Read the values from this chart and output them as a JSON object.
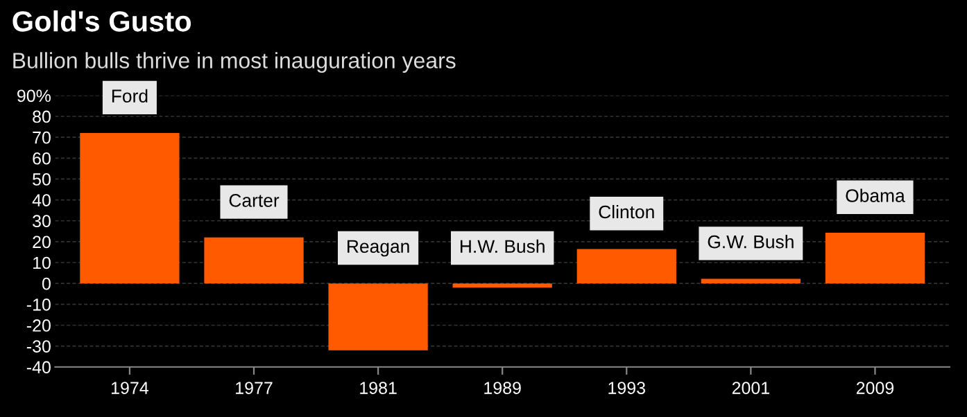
{
  "chart_data": {
    "type": "bar",
    "title": "Gold's Gusto",
    "subtitle": "Bullion bulls thrive in most inauguration years",
    "categories": [
      "1974",
      "1977",
      "1981",
      "1989",
      "1993",
      "2001",
      "2009"
    ],
    "values": [
      72,
      22,
      -32,
      -2,
      16.5,
      2.2,
      24.3
    ],
    "color": "#ff5a00",
    "ylim": [
      -40,
      90
    ],
    "yticks": [
      -40,
      -30,
      -20,
      -10,
      0,
      10,
      20,
      30,
      40,
      50,
      60,
      70,
      80,
      {
        "value": 90,
        "label": "90%"
      }
    ],
    "grid": "y",
    "annotations": [
      {
        "text": "Ford",
        "x": "1974",
        "y": 72
      },
      {
        "text": "Carter",
        "x": "1977",
        "y": 22
      },
      {
        "text": "Reagan",
        "x": "1981",
        "y": 0
      },
      {
        "text": "H.W. Bush",
        "x": "1989",
        "y": 0
      },
      {
        "text": "Clinton",
        "x": "1993",
        "y": 16.5
      },
      {
        "text": "G.W. Bush",
        "x": "2001",
        "y": 2.2
      },
      {
        "text": "Obama",
        "x": "2009",
        "y": 24.3
      }
    ]
  }
}
